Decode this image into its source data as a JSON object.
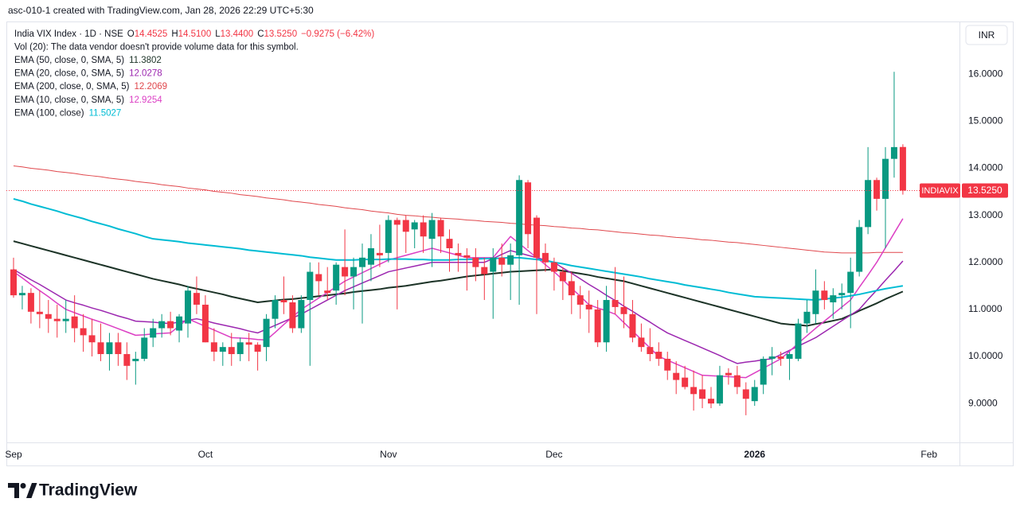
{
  "header": {
    "title": "asc-010-1 created with TradingView.com, Jan 28, 2026 22:29 UTC+5:30"
  },
  "chart_data": {
    "type": "candlestick",
    "symbol_line": "India VIX Index · 1D · NSE",
    "ohlc": [
      {
        "key": "O",
        "text": "14.4525"
      },
      {
        "key": "H",
        "text": "14.5100"
      },
      {
        "key": "L",
        "text": "13.4400"
      },
      {
        "key": "C",
        "text": "13.5250"
      }
    ],
    "change_text": "−0.9275 (−6.42%)",
    "volume_note": "Vol (20): The data vendor doesn't provide volume data for this symbol.",
    "currency": "INR",
    "last_price": {
      "tag": "INDIAVIX",
      "text": "13.5250"
    },
    "up_color": "#089981",
    "down_color": "#f23645",
    "categories": [
      "Sep",
      null,
      null,
      null,
      null,
      null,
      null,
      null,
      null,
      null,
      null,
      null,
      null,
      null,
      null,
      null,
      null,
      null,
      null,
      null,
      null,
      null,
      "Oct",
      null,
      null,
      null,
      null,
      null,
      null,
      null,
      null,
      null,
      null,
      null,
      null,
      null,
      null,
      null,
      null,
      null,
      null,
      null,
      null,
      "Nov",
      null,
      null,
      null,
      null,
      null,
      null,
      null,
      null,
      null,
      null,
      null,
      null,
      null,
      null,
      null,
      null,
      null,
      null,
      "Dec",
      null,
      null,
      null,
      null,
      null,
      null,
      null,
      null,
      null,
      null,
      null,
      null,
      null,
      null,
      null,
      null,
      null,
      null,
      null,
      null,
      null,
      null,
      "2026",
      null,
      null,
      null,
      null,
      null,
      null,
      null,
      null,
      null,
      null,
      null,
      null,
      null,
      null,
      null,
      null,
      null,
      null,
      null,
      "Feb",
      null,
      null
    ],
    "open": [
      11.85,
      11.3,
      11.35,
      10.95,
      10.9,
      10.8,
      10.75,
      10.85,
      10.6,
      10.45,
      10.3,
      10.05,
      10.3,
      10.05,
      9.9,
      9.95,
      10.4,
      10.6,
      10.75,
      10.55,
      10.7,
      11.35,
      11.1,
      10.3,
      10.1,
      10.2,
      10.05,
      10.3,
      10.25,
      10.2,
      10.8,
      11.2,
      11.15,
      10.6,
      11.2,
      11.75,
      11.4,
      11.4,
      11.9,
      11.7,
      11.9,
      11.95,
      12.2,
      12.2,
      12.9,
      12.9,
      12.7,
      12.85,
      12.5,
      12.9,
      12.5,
      12.2,
      12.15,
      12.1,
      11.9,
      11.8,
      12.1,
      11.95,
      12.15,
      13.7,
      12.95,
      12.2,
      12.0,
      11.8,
      11.6,
      11.3,
      11.1,
      11.0,
      10.3,
      11.2,
      11.05,
      10.9,
      10.4,
      10.2,
      10.1,
      9.95,
      9.65,
      9.55,
      9.35,
      9.3,
      9.1,
      9.0,
      9.65,
      9.6,
      9.3,
      9.05,
      9.4,
      9.95,
      10.0,
      9.95,
      9.95,
      10.7,
      10.9,
      11.4,
      11.15,
      11.3,
      11.35,
      11.8,
      12.75,
      13.75,
      13.35,
      14.2,
      14.4525,
      null,
      null,
      null,
      null,
      null
    ],
    "high": [
      12.1,
      11.5,
      11.45,
      11.4,
      11.2,
      11.1,
      11.2,
      11.3,
      10.9,
      10.8,
      10.7,
      10.5,
      10.5,
      10.3,
      10.1,
      10.6,
      10.8,
      10.9,
      10.95,
      10.9,
      11.5,
      11.7,
      11.3,
      10.6,
      10.3,
      10.5,
      10.4,
      10.5,
      10.3,
      10.9,
      11.3,
      11.7,
      11.3,
      11.3,
      12.0,
      12.0,
      11.9,
      12.0,
      12.7,
      12.1,
      12.4,
      12.6,
      12.8,
      13.0,
      12.95,
      13.0,
      12.9,
      13.0,
      13.05,
      12.95,
      12.7,
      12.4,
      12.3,
      12.3,
      12.1,
      12.3,
      12.4,
      12.4,
      13.85,
      13.75,
      13.0,
      12.4,
      12.1,
      11.9,
      11.8,
      11.5,
      11.4,
      11.2,
      11.5,
      11.9,
      11.7,
      11.2,
      10.7,
      10.6,
      10.3,
      10.1,
      9.9,
      9.8,
      9.7,
      9.6,
      9.35,
      9.8,
      9.75,
      9.8,
      9.45,
      9.5,
      10.0,
      10.2,
      10.1,
      10.1,
      10.8,
      11.2,
      11.85,
      11.6,
      11.45,
      11.55,
      12.1,
      12.9,
      14.45,
      13.8,
      14.45,
      16.05,
      14.51,
      null,
      null,
      null,
      null,
      null
    ],
    "low": [
      11.25,
      11.0,
      10.7,
      10.6,
      10.5,
      10.4,
      10.5,
      10.3,
      10.1,
      10.0,
      9.9,
      9.7,
      9.8,
      9.5,
      9.4,
      9.9,
      10.2,
      10.4,
      10.45,
      10.3,
      10.4,
      10.9,
      10.3,
      9.9,
      9.8,
      9.8,
      9.9,
      9.9,
      9.7,
      9.9,
      10.6,
      10.9,
      10.5,
      10.5,
      9.8,
      11.3,
      11.2,
      11.1,
      11.3,
      11.0,
      10.7,
      11.6,
      11.9,
      12.0,
      11.0,
      12.2,
      12.3,
      12.2,
      11.9,
      12.2,
      11.8,
      11.8,
      11.4,
      11.6,
      11.2,
      10.8,
      11.7,
      11.2,
      11.1,
      12.3,
      10.9,
      11.8,
      11.4,
      11.2,
      10.9,
      10.8,
      10.5,
      10.2,
      10.1,
      10.9,
      10.6,
      10.3,
      10.1,
      9.9,
      9.8,
      9.5,
      9.2,
      9.3,
      8.85,
      8.9,
      8.9,
      8.95,
      9.4,
      9.2,
      8.75,
      8.95,
      9.2,
      9.6,
      9.8,
      9.5,
      9.9,
      10.5,
      10.7,
      11.0,
      10.8,
      11.0,
      10.6,
      11.7,
      12.6,
      13.1,
      12.3,
      13.8,
      13.44,
      null,
      null,
      null,
      null,
      null
    ],
    "close": [
      11.3,
      11.35,
      10.95,
      10.9,
      10.8,
      10.75,
      10.8,
      10.6,
      10.45,
      10.3,
      10.05,
      10.3,
      10.05,
      9.8,
      9.95,
      10.4,
      10.6,
      10.75,
      10.6,
      10.85,
      11.4,
      11.1,
      10.3,
      10.1,
      10.2,
      10.05,
      10.3,
      10.25,
      10.1,
      10.8,
      11.2,
      11.15,
      10.6,
      11.2,
      11.8,
      11.6,
      11.35,
      11.95,
      11.7,
      11.9,
      12.1,
      12.3,
      12.15,
      12.9,
      12.8,
      12.65,
      12.85,
      12.55,
      12.9,
      12.55,
      12.3,
      12.15,
      12.1,
      11.9,
      11.75,
      12.1,
      11.95,
      12.15,
      13.75,
      12.6,
      12.1,
      12.0,
      11.8,
      11.6,
      11.3,
      11.1,
      11.0,
      10.3,
      11.2,
      11.05,
      10.9,
      10.4,
      10.2,
      10.05,
      9.95,
      9.7,
      9.5,
      9.35,
      9.2,
      9.1,
      9.0,
      9.6,
      9.6,
      9.35,
      9.1,
      9.35,
      9.95,
      10.0,
      9.95,
      10.05,
      10.7,
      10.95,
      11.4,
      11.2,
      11.3,
      11.35,
      11.8,
      12.75,
      13.75,
      13.35,
      14.2,
      14.45,
      13.525,
      null,
      null,
      null,
      null,
      null
    ],
    "series": [
      {
        "name": "EMA (50, close, 0, SMA, 5)",
        "value_label": "11.3802",
        "color": "#1c3327",
        "width": 2,
        "values": [
          12.45,
          12.4,
          12.35,
          12.3,
          12.25,
          12.2,
          12.15,
          12.1,
          12.05,
          12.0,
          11.95,
          11.9,
          11.85,
          11.8,
          11.75,
          11.7,
          11.65,
          11.61,
          11.57,
          11.53,
          11.48,
          11.44,
          11.4,
          11.36,
          11.32,
          11.27,
          11.23,
          11.19,
          11.15,
          11.17,
          11.19,
          11.21,
          11.22,
          11.24,
          11.26,
          11.28,
          11.3,
          11.32,
          11.34,
          11.37,
          11.39,
          11.41,
          11.43,
          11.46,
          11.48,
          11.5,
          11.53,
          11.56,
          11.59,
          11.61,
          11.64,
          11.67,
          11.7,
          11.72,
          11.74,
          11.76,
          11.78,
          11.8,
          11.81,
          11.82,
          11.83,
          11.84,
          11.85,
          11.82,
          11.79,
          11.76,
          11.73,
          11.69,
          11.66,
          11.63,
          11.6,
          11.55,
          11.5,
          11.45,
          11.4,
          11.35,
          11.3,
          11.25,
          11.2,
          11.15,
          11.1,
          11.05,
          11.0,
          10.95,
          10.9,
          10.85,
          10.8,
          10.75,
          10.7,
          10.68,
          10.67,
          10.65,
          10.69,
          10.72,
          10.76,
          10.8,
          10.88,
          10.97,
          11.05,
          11.13,
          11.22,
          11.3,
          11.38,
          null,
          null,
          null,
          null,
          null
        ]
      },
      {
        "name": "EMA (20, close, 0, SMA, 5)",
        "value_label": "12.0278",
        "color": "#9c27b0",
        "width": 1.5,
        "values": [
          11.85,
          11.74,
          11.63,
          11.53,
          11.42,
          11.31,
          11.2,
          11.14,
          11.09,
          11.03,
          10.98,
          10.92,
          10.86,
          10.81,
          10.75,
          10.74,
          10.73,
          10.71,
          10.7,
          10.73,
          10.77,
          10.8,
          10.76,
          10.71,
          10.67,
          10.63,
          10.59,
          10.54,
          10.5,
          10.58,
          10.66,
          10.74,
          10.82,
          10.9,
          11.0,
          11.1,
          11.2,
          11.3,
          11.4,
          11.48,
          11.56,
          11.64,
          11.72,
          11.8,
          11.84,
          11.88,
          11.92,
          11.96,
          12.0,
          12.0,
          12.0,
          12.0,
          12.0,
          12.0,
          12.0,
          12.08,
          12.17,
          12.25,
          12.2,
          12.15,
          12.1,
          12.05,
          12.0,
          11.88,
          11.77,
          11.65,
          11.53,
          11.42,
          11.3,
          11.19,
          11.07,
          10.96,
          10.84,
          10.73,
          10.61,
          10.5,
          10.42,
          10.34,
          10.26,
          10.18,
          10.1,
          10.02,
          9.93,
          9.85,
          9.88,
          9.9,
          9.93,
          9.95,
          10.04,
          10.13,
          10.22,
          10.31,
          10.4,
          10.52,
          10.64,
          10.76,
          10.88,
          11.0,
          11.21,
          11.41,
          11.62,
          11.82,
          12.03,
          null,
          null,
          null,
          null,
          null
        ]
      },
      {
        "name": "EMA (200, close, 0, SMA, 5)",
        "value_label": "12.2069",
        "color": "#e0474c",
        "width": 1,
        "values": [
          14.05,
          14.03,
          14.0,
          13.98,
          13.96,
          13.93,
          13.91,
          13.89,
          13.86,
          13.84,
          13.82,
          13.79,
          13.77,
          13.75,
          13.72,
          13.7,
          13.68,
          13.65,
          13.63,
          13.61,
          13.58,
          13.56,
          13.54,
          13.51,
          13.49,
          13.47,
          13.44,
          13.42,
          13.4,
          13.37,
          13.35,
          13.33,
          13.3,
          13.28,
          13.26,
          13.23,
          13.21,
          13.19,
          13.16,
          13.14,
          13.12,
          13.09,
          13.07,
          13.05,
          13.02,
          13.0,
          12.99,
          12.97,
          12.96,
          12.94,
          12.93,
          12.92,
          12.9,
          12.89,
          12.87,
          12.86,
          12.85,
          12.83,
          12.82,
          12.8,
          12.79,
          12.78,
          12.76,
          12.75,
          12.73,
          12.72,
          12.7,
          12.69,
          12.67,
          12.65,
          12.63,
          12.62,
          12.6,
          12.58,
          12.57,
          12.55,
          12.53,
          12.52,
          12.5,
          12.48,
          12.47,
          12.45,
          12.43,
          12.42,
          12.4,
          12.38,
          12.36,
          12.34,
          12.32,
          12.3,
          12.28,
          12.26,
          12.24,
          12.22,
          12.21,
          12.2,
          12.2,
          12.2,
          12.2,
          12.21,
          12.21,
          12.21,
          12.21,
          null,
          null,
          null,
          null,
          null
        ]
      },
      {
        "name": "EMA (10, close, 0, SMA, 5)",
        "value_label": "12.9254",
        "color": "#dc3fc4",
        "width": 1.5,
        "values": [
          11.8,
          11.67,
          11.53,
          11.4,
          11.27,
          11.13,
          11.0,
          10.93,
          10.86,
          10.79,
          10.73,
          10.66,
          10.59,
          10.52,
          10.45,
          10.46,
          10.48,
          10.49,
          10.5,
          10.65,
          10.8,
          10.72,
          10.64,
          10.56,
          10.48,
          10.4,
          10.39,
          10.38,
          10.36,
          10.35,
          10.51,
          10.68,
          10.84,
          11.0,
          11.12,
          11.24,
          11.36,
          11.48,
          11.6,
          11.69,
          11.78,
          11.87,
          11.96,
          12.05,
          12.1,
          12.15,
          12.2,
          12.25,
          12.3,
          12.25,
          12.2,
          12.15,
          12.1,
          12.1,
          12.1,
          12.1,
          12.33,
          12.55,
          12.4,
          12.25,
          12.1,
          11.95,
          11.8,
          11.63,
          11.45,
          11.28,
          11.1,
          11.03,
          10.97,
          10.9,
          10.72,
          10.54,
          10.36,
          10.18,
          10.0,
          9.92,
          9.84,
          9.76,
          9.68,
          9.6,
          9.59,
          9.58,
          9.57,
          9.56,
          9.55,
          9.65,
          9.75,
          9.85,
          9.95,
          10.11,
          10.28,
          10.44,
          10.6,
          10.75,
          10.9,
          11.05,
          11.2,
          11.47,
          11.73,
          12.0,
          12.31,
          12.62,
          12.93,
          null,
          null,
          null,
          null,
          null
        ]
      },
      {
        "name": "EMA (100, close)",
        "value_label": "11.5027",
        "color": "#00bcd4",
        "width": 2,
        "values": [
          13.35,
          13.3,
          13.24,
          13.19,
          13.14,
          13.09,
          13.03,
          12.98,
          12.93,
          12.87,
          12.82,
          12.77,
          12.71,
          12.66,
          12.61,
          12.55,
          12.5,
          12.48,
          12.46,
          12.44,
          12.41,
          12.39,
          12.37,
          12.35,
          12.33,
          12.31,
          12.29,
          12.26,
          12.24,
          12.22,
          12.2,
          12.18,
          12.16,
          12.14,
          12.11,
          12.09,
          12.07,
          12.05,
          12.05,
          12.05,
          12.06,
          12.06,
          12.06,
          12.07,
          12.07,
          12.07,
          12.06,
          12.06,
          12.05,
          12.05,
          12.05,
          12.06,
          12.06,
          12.07,
          12.08,
          12.08,
          12.09,
          12.1,
          12.1,
          12.08,
          12.06,
          12.04,
          12.0,
          11.97,
          11.93,
          11.9,
          11.87,
          11.84,
          11.81,
          11.78,
          11.75,
          11.72,
          11.69,
          11.65,
          11.62,
          11.59,
          11.56,
          11.52,
          11.49,
          11.46,
          11.43,
          11.4,
          11.36,
          11.33,
          11.3,
          11.27,
          11.26,
          11.25,
          11.24,
          11.23,
          11.22,
          11.21,
          11.2,
          11.22,
          11.24,
          11.26,
          11.29,
          11.32,
          11.36,
          11.4,
          11.44,
          11.47,
          11.5,
          null,
          null,
          null,
          null,
          null
        ]
      }
    ],
    "ylim": [
      8.19,
      17.12
    ],
    "yticks": [
      {
        "value": 9,
        "label": "9.0000"
      },
      {
        "value": 10,
        "label": "10.0000"
      },
      {
        "value": 11,
        "label": "11.0000"
      },
      {
        "value": 12,
        "label": "12.0000"
      },
      {
        "value": 13,
        "label": "13.0000"
      },
      {
        "value": 14,
        "label": "14.0000"
      },
      {
        "value": 15,
        "label": "15.0000"
      },
      {
        "value": 16,
        "label": "16.0000"
      }
    ],
    "grid": false
  },
  "footer": {
    "brand": "TradingView"
  }
}
